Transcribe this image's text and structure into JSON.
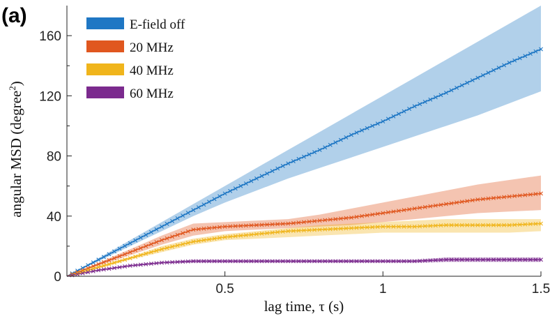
{
  "panel_label": "(a)",
  "colors": {
    "e_field_off": "#1f77c4",
    "mhz20": "#e0571f",
    "mhz40": "#f0b51c",
    "mhz60": "#7b2a8e"
  },
  "chart_data": {
    "type": "line",
    "title": "",
    "xlabel": "lag time, τ (s)",
    "ylabel_main": "angular MSD (degree",
    "ylabel_sup": "2",
    "ylabel_close": ")",
    "xlim": [
      0,
      1.5
    ],
    "ylim": [
      0,
      180
    ],
    "xticks": [
      0.5,
      1,
      1.5
    ],
    "xtick_labels": [
      "0.5",
      "1",
      "1.5"
    ],
    "yticks": [
      0,
      40,
      80,
      120,
      160
    ],
    "ytick_labels": [
      "0",
      "40",
      "80",
      "120",
      "160"
    ],
    "yminor_ticks": [
      20,
      60,
      100,
      140
    ],
    "grid": false,
    "legend_position": "top-left",
    "x": [
      0,
      0.1,
      0.2,
      0.3,
      0.4,
      0.5,
      0.6,
      0.7,
      0.8,
      0.9,
      1.0,
      1.1,
      1.2,
      1.3,
      1.4,
      1.5
    ],
    "series": [
      {
        "name": "E-field off",
        "color_key": "e_field_off",
        "values": [
          0,
          11,
          22,
          33,
          44,
          55,
          65,
          75,
          84,
          94,
          103,
          113,
          122,
          132,
          142,
          151
        ],
        "lower": [
          0,
          10,
          20,
          30,
          40,
          49,
          57,
          65,
          72,
          79,
          86,
          93,
          100,
          107,
          115,
          123
        ],
        "upper": [
          0,
          12,
          24,
          36,
          48,
          60,
          72,
          84,
          96,
          108,
          120,
          132,
          144,
          156,
          168,
          180
        ]
      },
      {
        "name": "20 MHz",
        "color_key": "mhz20",
        "values": [
          0,
          8,
          16,
          24,
          31,
          33,
          34,
          35,
          37,
          39,
          42,
          45,
          48,
          51,
          53,
          55
        ],
        "lower": [
          0,
          7,
          14,
          21,
          27,
          30,
          31,
          32,
          33,
          34,
          36,
          38,
          40,
          42,
          43,
          44
        ],
        "upper": [
          0,
          9,
          18,
          27,
          35,
          36,
          37,
          38,
          41,
          45,
          49,
          53,
          57,
          61,
          64,
          67
        ]
      },
      {
        "name": "40 MHz",
        "color_key": "mhz40",
        "values": [
          0,
          6,
          12,
          18,
          23,
          26,
          28,
          30,
          31,
          32,
          33,
          33,
          34,
          34,
          34,
          35
        ],
        "lower": [
          0,
          5,
          11,
          16,
          21,
          24,
          25,
          26,
          27,
          28,
          29,
          29,
          29,
          29,
          29,
          30
        ],
        "upper": [
          0,
          7,
          13,
          20,
          25,
          28,
          30,
          32,
          34,
          35,
          36,
          37,
          38,
          38,
          38,
          38
        ]
      },
      {
        "name": "60 MHz",
        "color_key": "mhz60",
        "values": [
          0,
          4,
          7,
          9,
          10,
          10,
          10,
          10,
          10,
          10,
          10,
          10,
          11,
          11,
          11,
          11
        ],
        "lower": [
          0,
          3.5,
          6.5,
          8.5,
          9,
          9,
          9,
          9,
          9,
          9,
          9,
          9,
          9.5,
          9.5,
          9.5,
          9.5
        ],
        "upper": [
          0,
          4.5,
          7.5,
          9.5,
          11,
          11,
          11,
          11,
          11,
          11,
          11,
          11,
          12.5,
          12.5,
          12.5,
          12.5
        ]
      }
    ]
  }
}
